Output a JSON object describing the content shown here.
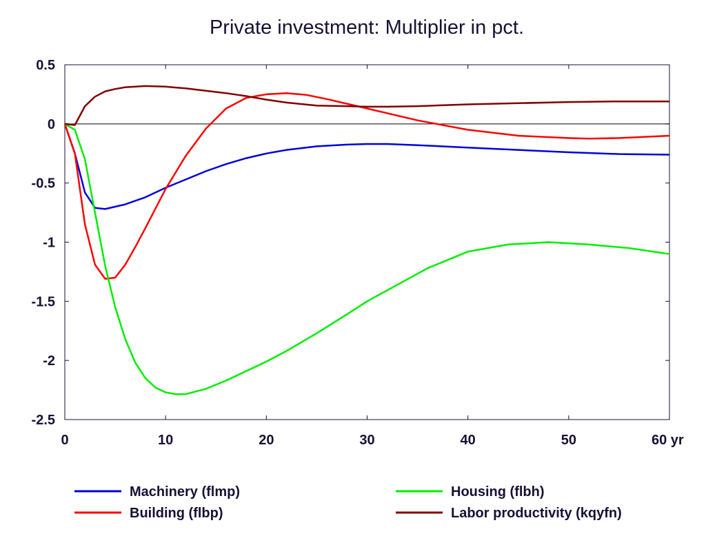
{
  "chart_data": {
    "type": "line",
    "title": "Private investment: Multiplier in pct.",
    "xlabel": "",
    "ylabel": "",
    "x_unit_label": "yr",
    "xlim": [
      0,
      60
    ],
    "ylim": [
      -2.5,
      0.5
    ],
    "x_ticks": [
      0,
      10,
      20,
      30,
      40,
      50,
      60
    ],
    "x_tick_labels": [
      "0",
      "10",
      "20",
      "30",
      "40",
      "50",
      "60 yr"
    ],
    "y_ticks": [
      0.5,
      0,
      -0.5,
      -1,
      -1.5,
      -2,
      -2.5
    ],
    "y_tick_labels": [
      "0.5",
      "0",
      "-0.5",
      "-1",
      "-1.5",
      "-2",
      "-2.5"
    ],
    "grid": false,
    "zero_line": true,
    "legend_position": "bottom",
    "series": [
      {
        "name": "Machinery (flmp)",
        "color": "#0000dd",
        "x": [
          0,
          1,
          2,
          3,
          4,
          5,
          6,
          8,
          10,
          12,
          14,
          16,
          18,
          20,
          22,
          25,
          28,
          30,
          32,
          35,
          40,
          45,
          50,
          55,
          60
        ],
        "y": [
          0,
          -0.25,
          -0.58,
          -0.71,
          -0.72,
          -0.7,
          -0.68,
          -0.62,
          -0.54,
          -0.47,
          -0.4,
          -0.34,
          -0.29,
          -0.25,
          -0.22,
          -0.19,
          -0.175,
          -0.17,
          -0.17,
          -0.18,
          -0.2,
          -0.22,
          -0.24,
          -0.255,
          -0.26
        ]
      },
      {
        "name": "Building (flbp)",
        "color": "#ff0000",
        "x": [
          0,
          1,
          2,
          3,
          4,
          5,
          6,
          7,
          8,
          10,
          12,
          14,
          16,
          18,
          20,
          22,
          24,
          26,
          28,
          30,
          35,
          40,
          45,
          50,
          52,
          55,
          60
        ],
        "y": [
          0,
          -0.25,
          -0.85,
          -1.19,
          -1.31,
          -1.3,
          -1.19,
          -1.04,
          -0.88,
          -0.55,
          -0.27,
          -0.04,
          0.13,
          0.22,
          0.25,
          0.26,
          0.245,
          0.21,
          0.17,
          0.13,
          0.03,
          -0.05,
          -0.1,
          -0.12,
          -0.125,
          -0.12,
          -0.1
        ]
      },
      {
        "name": "Housing (flbh)",
        "color": "#00ee00",
        "x": [
          0,
          1,
          2,
          3,
          4,
          5,
          6,
          7,
          8,
          9,
          10,
          11,
          12,
          14,
          16,
          18,
          20,
          22,
          25,
          28,
          30,
          33,
          36,
          40,
          44,
          48,
          52,
          56,
          60
        ],
        "y": [
          0,
          -0.05,
          -0.3,
          -0.75,
          -1.2,
          -1.55,
          -1.82,
          -2.02,
          -2.15,
          -2.23,
          -2.27,
          -2.285,
          -2.285,
          -2.24,
          -2.17,
          -2.09,
          -2.01,
          -1.92,
          -1.77,
          -1.61,
          -1.5,
          -1.36,
          -1.22,
          -1.08,
          -1.02,
          -1.0,
          -1.02,
          -1.05,
          -1.1
        ]
      },
      {
        "name": "Labor productivity (kqyfn)",
        "color": "#800000",
        "x": [
          0,
          1,
          2,
          3,
          4,
          5,
          6,
          8,
          10,
          12,
          14,
          16,
          18,
          20,
          22,
          25,
          28,
          30,
          32,
          35,
          40,
          45,
          50,
          55,
          60
        ],
        "y": [
          0,
          -0.01,
          0.15,
          0.23,
          0.275,
          0.295,
          0.31,
          0.32,
          0.315,
          0.3,
          0.28,
          0.26,
          0.235,
          0.205,
          0.18,
          0.155,
          0.15,
          0.145,
          0.145,
          0.15,
          0.165,
          0.175,
          0.185,
          0.19,
          0.19
        ]
      }
    ]
  }
}
